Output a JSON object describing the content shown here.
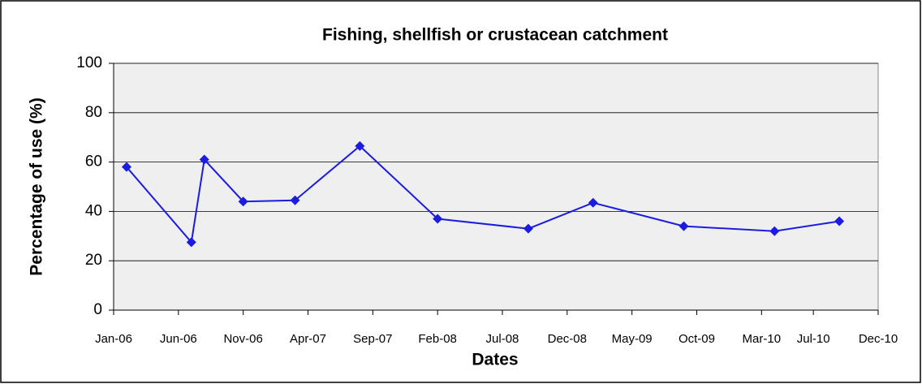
{
  "chart_data": {
    "type": "line",
    "title": "Fishing, shellfish or crustacean catchment",
    "x_label": "Dates",
    "y_label": "Percentage of use (%)",
    "x": [
      "2006-02",
      "2006-07",
      "2006-08",
      "2006-11",
      "2007-03",
      "2007-08",
      "2008-02",
      "2008-09",
      "2009-02",
      "2009-09",
      "2010-04",
      "2010-09"
    ],
    "series": [
      {
        "name": "Fishing, shellfish or crustacean catchment",
        "color": "#1c1ce0",
        "values": [
          58,
          27.5,
          61,
          44,
          44.5,
          66.5,
          37,
          33,
          43.5,
          34,
          32,
          36
        ]
      }
    ],
    "xlim": [
      "2006-01",
      "2010-12"
    ],
    "xticks": [
      {
        "value": "2006-01",
        "label": "Jan-06"
      },
      {
        "value": "2006-06",
        "label": "Jun-06"
      },
      {
        "value": "2006-11",
        "label": "Nov-06"
      },
      {
        "value": "2007-04",
        "label": "Apr-07"
      },
      {
        "value": "2007-09",
        "label": "Sep-07"
      },
      {
        "value": "2008-02",
        "label": "Feb-08"
      },
      {
        "value": "2008-07",
        "label": "Jul-08"
      },
      {
        "value": "2008-12",
        "label": "Dec-08"
      },
      {
        "value": "2009-05",
        "label": "May-09"
      },
      {
        "value": "2009-10",
        "label": "Oct-09"
      },
      {
        "value": "2010-03",
        "label": "Mar-10"
      },
      {
        "value": "2010-07",
        "label": "Jul-10"
      },
      {
        "value": "2010-12",
        "label": "Dec-10"
      }
    ],
    "ylim": [
      0,
      100
    ],
    "yticks": [
      0,
      20,
      40,
      60,
      80,
      100
    ],
    "grid": true
  }
}
